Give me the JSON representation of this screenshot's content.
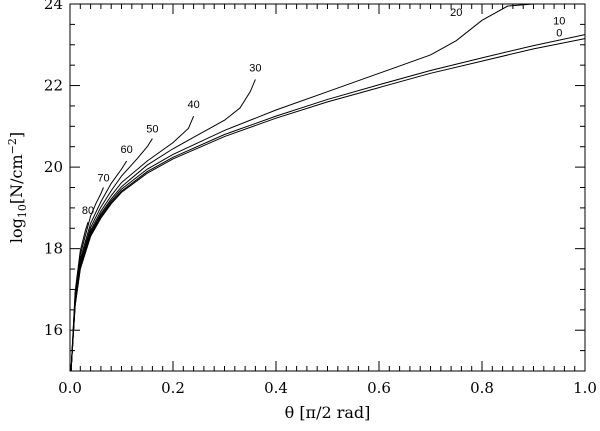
{
  "chart_data": {
    "type": "line",
    "title": "",
    "xlabel": "θ [π/2 rad]",
    "ylabel_prefix": "log",
    "ylabel_sub": "10",
    "ylabel_mid": "[N/cm",
    "ylabel_sup": "−2",
    "ylabel_suffix": "]",
    "xlim": [
      0.0,
      1.0
    ],
    "ylim": [
      15,
      24
    ],
    "x_ticks": [
      "0.0",
      "0.2",
      "0.4",
      "0.6",
      "0.8",
      "1.0"
    ],
    "x_tick_values": [
      0.0,
      0.2,
      0.4,
      0.6,
      0.8,
      1.0
    ],
    "y_ticks": [
      "16",
      "18",
      "20",
      "22",
      "24"
    ],
    "y_tick_values": [
      16,
      18,
      20,
      22,
      24
    ],
    "series": [
      {
        "name": "0",
        "label_at": [
          0.95,
          23.2
        ],
        "points": [
          [
            0.002,
            15.0
          ],
          [
            0.01,
            16.6
          ],
          [
            0.02,
            17.5
          ],
          [
            0.04,
            18.3
          ],
          [
            0.06,
            18.75
          ],
          [
            0.08,
            19.1
          ],
          [
            0.1,
            19.38
          ],
          [
            0.15,
            19.85
          ],
          [
            0.2,
            20.2
          ],
          [
            0.3,
            20.75
          ],
          [
            0.4,
            21.2
          ],
          [
            0.5,
            21.6
          ],
          [
            0.6,
            21.95
          ],
          [
            0.7,
            22.3
          ],
          [
            0.8,
            22.6
          ],
          [
            0.9,
            22.9
          ],
          [
            1.0,
            23.15
          ]
        ]
      },
      {
        "name": "10",
        "label_at": [
          0.95,
          23.5
        ],
        "points": [
          [
            0.002,
            15.0
          ],
          [
            0.01,
            16.62
          ],
          [
            0.02,
            17.52
          ],
          [
            0.04,
            18.33
          ],
          [
            0.06,
            18.78
          ],
          [
            0.08,
            19.13
          ],
          [
            0.1,
            19.41
          ],
          [
            0.15,
            19.89
          ],
          [
            0.2,
            20.24
          ],
          [
            0.3,
            20.8
          ],
          [
            0.4,
            21.25
          ],
          [
            0.5,
            21.66
          ],
          [
            0.6,
            22.02
          ],
          [
            0.7,
            22.37
          ],
          [
            0.8,
            22.68
          ],
          [
            0.9,
            22.98
          ],
          [
            1.0,
            23.25
          ]
        ]
      },
      {
        "name": "20",
        "label_at": [
          0.75,
          24.2
        ],
        "points": [
          [
            0.002,
            15.0
          ],
          [
            0.01,
            16.65
          ],
          [
            0.02,
            17.55
          ],
          [
            0.04,
            18.36
          ],
          [
            0.06,
            18.82
          ],
          [
            0.08,
            19.17
          ],
          [
            0.1,
            19.46
          ],
          [
            0.15,
            19.95
          ],
          [
            0.2,
            20.31
          ],
          [
            0.3,
            20.9
          ],
          [
            0.4,
            21.4
          ],
          [
            0.5,
            21.85
          ],
          [
            0.6,
            22.3
          ],
          [
            0.7,
            22.75
          ],
          [
            0.75,
            23.1
          ],
          [
            0.8,
            23.6
          ],
          [
            0.85,
            23.95
          ],
          [
            0.9,
            24.0
          ]
        ]
      },
      {
        "name": "30",
        "label_at": [
          0.36,
          22.35
        ],
        "points": [
          [
            0.002,
            15.0
          ],
          [
            0.01,
            16.68
          ],
          [
            0.02,
            17.58
          ],
          [
            0.04,
            18.4
          ],
          [
            0.06,
            18.86
          ],
          [
            0.08,
            19.22
          ],
          [
            0.1,
            19.52
          ],
          [
            0.15,
            20.05
          ],
          [
            0.2,
            20.45
          ],
          [
            0.25,
            20.8
          ],
          [
            0.3,
            21.15
          ],
          [
            0.33,
            21.45
          ],
          [
            0.35,
            21.85
          ],
          [
            0.36,
            22.15
          ]
        ]
      },
      {
        "name": "40",
        "label_at": [
          0.24,
          21.45
        ],
        "points": [
          [
            0.002,
            15.0
          ],
          [
            0.01,
            16.72
          ],
          [
            0.02,
            17.62
          ],
          [
            0.04,
            18.45
          ],
          [
            0.06,
            18.92
          ],
          [
            0.08,
            19.3
          ],
          [
            0.1,
            19.62
          ],
          [
            0.15,
            20.15
          ],
          [
            0.2,
            20.6
          ],
          [
            0.23,
            20.95
          ],
          [
            0.24,
            21.25
          ]
        ]
      },
      {
        "name": "50",
        "label_at": [
          0.16,
          20.85
        ],
        "points": [
          [
            0.002,
            15.0
          ],
          [
            0.01,
            16.76
          ],
          [
            0.02,
            17.68
          ],
          [
            0.04,
            18.52
          ],
          [
            0.06,
            19.02
          ],
          [
            0.08,
            19.42
          ],
          [
            0.1,
            19.78
          ],
          [
            0.13,
            20.2
          ],
          [
            0.15,
            20.5
          ],
          [
            0.16,
            20.7
          ]
        ]
      },
      {
        "name": "60",
        "label_at": [
          0.11,
          20.35
        ],
        "points": [
          [
            0.002,
            15.0
          ],
          [
            0.01,
            16.8
          ],
          [
            0.02,
            17.75
          ],
          [
            0.04,
            18.62
          ],
          [
            0.06,
            19.15
          ],
          [
            0.08,
            19.6
          ],
          [
            0.1,
            19.95
          ],
          [
            0.11,
            20.15
          ]
        ]
      },
      {
        "name": "70",
        "label_at": [
          0.065,
          19.65
        ],
        "points": [
          [
            0.002,
            15.0
          ],
          [
            0.01,
            16.86
          ],
          [
            0.02,
            17.85
          ],
          [
            0.04,
            18.8
          ],
          [
            0.05,
            19.1
          ],
          [
            0.06,
            19.35
          ],
          [
            0.065,
            19.5
          ]
        ]
      },
      {
        "name": "80",
        "label_at": [
          0.035,
          18.85
        ],
        "points": [
          [
            0.002,
            15.0
          ],
          [
            0.01,
            16.95
          ],
          [
            0.02,
            17.95
          ],
          [
            0.03,
            18.45
          ],
          [
            0.035,
            18.65
          ]
        ]
      }
    ]
  }
}
